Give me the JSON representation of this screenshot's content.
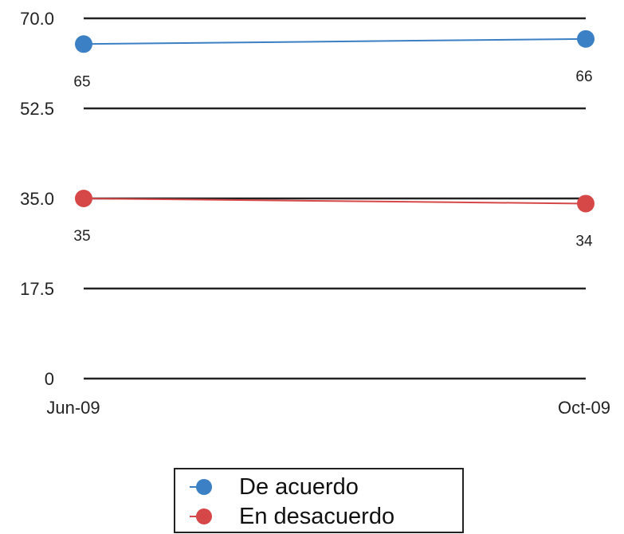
{
  "chart_data": {
    "type": "line",
    "categories": [
      "Jun-09",
      "Oct-09"
    ],
    "y_ticks": [
      "0",
      "17.5",
      "35.0",
      "52.5",
      "70.0"
    ],
    "ylim": [
      0,
      70
    ],
    "grid": true,
    "legend_position": "bottom",
    "series": [
      {
        "name": "De acuerdo",
        "values": [
          65,
          66
        ],
        "labels": [
          "65",
          "66"
        ],
        "color": "#3b7fc4"
      },
      {
        "name": "En desacuerdo",
        "values": [
          35,
          34
        ],
        "labels": [
          "35",
          "34"
        ],
        "color": "#d64848"
      }
    ]
  }
}
